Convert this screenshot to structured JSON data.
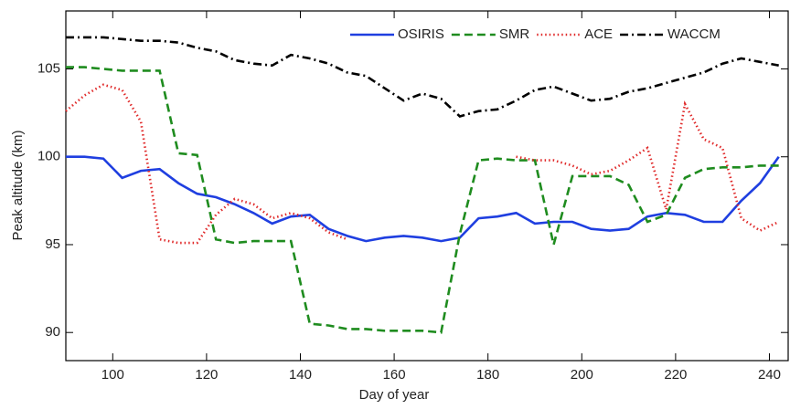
{
  "chart_data": {
    "type": "line",
    "xlabel": "Day of year",
    "ylabel": "Peak altitude (km)",
    "x": [
      90,
      94,
      98,
      102,
      106,
      110,
      114,
      118,
      122,
      126,
      130,
      134,
      138,
      142,
      146,
      150,
      154,
      158,
      162,
      166,
      170,
      174,
      178,
      182,
      186,
      190,
      194,
      198,
      202,
      206,
      210,
      214,
      218,
      222,
      226,
      230,
      234,
      238,
      242
    ],
    "series": [
      {
        "name": "OSIRIS",
        "color": "#1f3fe0",
        "dash": "none",
        "values": [
          100,
          100,
          99.9,
          98.8,
          99.2,
          99.3,
          98.5,
          97.9,
          97.7,
          97.3,
          96.8,
          96.2,
          96.6,
          96.7,
          95.9,
          95.5,
          95.2,
          95.4,
          95.5,
          95.4,
          95.2,
          95.4,
          96.5,
          96.6,
          96.8,
          96.2,
          96.3,
          96.3,
          95.9,
          95.8,
          95.9,
          96.6,
          96.8,
          96.7,
          96.3,
          96.3,
          97.5,
          98.5,
          100
        ]
      },
      {
        "name": "SMR",
        "color": "#1f8c1f",
        "dash": "9,5",
        "values": [
          105.1,
          105.1,
          105,
          104.9,
          104.9,
          104.9,
          100.2,
          100.1,
          95.3,
          95.1,
          95.2,
          95.2,
          95.2,
          90.5,
          90.4,
          90.2,
          90.2,
          90.1,
          90.1,
          90.1,
          90,
          95.6,
          99.8,
          99.9,
          99.8,
          99.8,
          95,
          98.9,
          98.9,
          98.9,
          98.4,
          96.3,
          96.7,
          98.8,
          99.3,
          99.4,
          99.4,
          99.5,
          99.5
        ]
      },
      {
        "name": "ACE",
        "color": "#e02a2a",
        "dash": "1.5,3",
        "values": [
          102.6,
          103.5,
          104.1,
          103.8,
          102,
          95.3,
          95.1,
          95.1,
          96.7,
          97.6,
          97.3,
          96.5,
          96.8,
          96.5,
          95.7,
          95.3,
          null,
          null,
          null,
          null,
          null,
          null,
          null,
          null,
          100,
          99.8,
          99.8,
          99.5,
          99,
          99.2,
          99.8,
          100.5,
          97,
          103,
          101,
          100.5,
          96.5,
          95.8,
          96.3
        ]
      },
      {
        "name": "WACCM",
        "color": "#000000",
        "dash": "9,4,2,4",
        "values": [
          106.8,
          106.8,
          106.8,
          106.7,
          106.6,
          106.6,
          106.5,
          106.2,
          106,
          105.5,
          105.3,
          105.2,
          105.8,
          105.6,
          105.3,
          104.8,
          104.6,
          103.9,
          103.2,
          103.6,
          103.3,
          102.3,
          102.6,
          102.7,
          103.2,
          103.8,
          104,
          103.6,
          103.2,
          103.3,
          103.7,
          103.9,
          104.2,
          104.5,
          104.8,
          105.3,
          105.6,
          105.4,
          105.2
        ]
      }
    ],
    "xlim": [
      90,
      244
    ],
    "ylim": [
      88.4,
      108.3
    ],
    "xticks": [
      100,
      120,
      140,
      160,
      180,
      200,
      220,
      240
    ],
    "yticks": [
      90,
      95,
      100,
      105
    ],
    "legend": "upper right"
  }
}
